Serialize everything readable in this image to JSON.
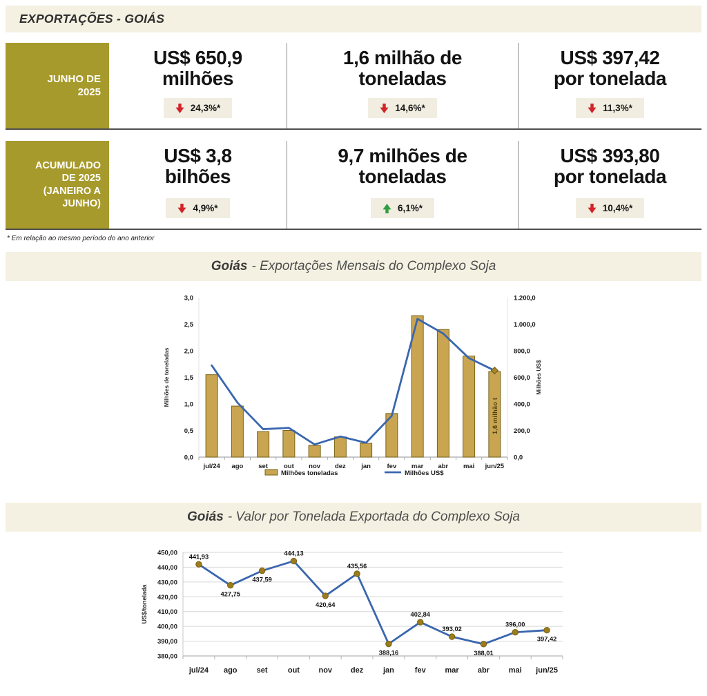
{
  "header": {
    "title": "EXPORTAÇÕES - GOIÁS"
  },
  "kpi": {
    "rows": [
      {
        "label_lines": [
          "JUNHO DE",
          "2025"
        ],
        "cells": [
          {
            "line1": "US$ 650,9",
            "line2": "milhões",
            "delta": "24,3%*",
            "direction": "down"
          },
          {
            "line1": "1,6 milhão de",
            "line2": "toneladas",
            "delta": "14,6%*",
            "direction": "down"
          },
          {
            "line1": "US$ 397,42",
            "line2": "por tonelada",
            "delta": "11,3%*",
            "direction": "down"
          }
        ]
      },
      {
        "label_lines": [
          "ACUMULADO",
          "DE 2025",
          "(JANEIRO A",
          "JUNHO)"
        ],
        "cells": [
          {
            "line1": "US$ 3,8",
            "line2": "bilhões",
            "delta": "4,9%*",
            "direction": "down"
          },
          {
            "line1": "9,7 milhões de",
            "line2": "toneladas",
            "delta": "6,1%*",
            "direction": "up"
          },
          {
            "line1": "US$ 393,80",
            "line2": "por tonelada",
            "delta": "10,4%*",
            "direction": "down"
          }
        ]
      }
    ],
    "up_color": "#2f9f42",
    "down_color": "#d2232a"
  },
  "footnote": "* Em relação ao mesmo período do ano anterior",
  "chart_data": [
    {
      "type": "bar",
      "title_bold": "Goiás",
      "title_rest": "- Exportações Mensais do Complexo Soja",
      "categories": [
        "jul/24",
        "ago",
        "set",
        "out",
        "nov",
        "dez",
        "jan",
        "fev",
        "mar",
        "abr",
        "mai",
        "jun/25"
      ],
      "series": [
        {
          "name": "Milhões toneladas",
          "type": "bar",
          "axis": "left",
          "values": [
            1.55,
            0.96,
            0.48,
            0.5,
            0.22,
            0.38,
            0.26,
            0.82,
            2.66,
            2.4,
            1.9,
            1.61
          ]
        },
        {
          "name": "Milhões US$",
          "type": "line",
          "axis": "right",
          "values": [
            690,
            410,
            210,
            220,
            95,
            155,
            108,
            310,
            1040,
            930,
            745,
            651
          ]
        }
      ],
      "left_axis": {
        "label": "Milhões de toneladas",
        "min": 0,
        "max": 3,
        "step": 0.5,
        "tick_labels": [
          "0,0",
          "0,5",
          "1,0",
          "1,5",
          "2,0",
          "2,5",
          "3,0"
        ]
      },
      "right_axis": {
        "label": "Milhões US$",
        "min": 0,
        "max": 1200,
        "step": 200,
        "tick_labels": [
          "0,0",
          "200,0",
          "400,0",
          "600,0",
          "800,0",
          "1.000,0",
          "1.200,0"
        ]
      },
      "annotation": {
        "text": "1,6 milhão t",
        "category_index": 11
      },
      "legend": [
        "Milhões toneladas",
        "Milhões US$"
      ],
      "grid": false,
      "style": {
        "bar_fill": "#c9a551",
        "bar_stroke": "#756418",
        "line_color": "#3a66ae",
        "marker_fill": "#a8862a",
        "marker_stroke": "#6e5a14",
        "annotation_color": "#4a3c0a"
      }
    },
    {
      "type": "line",
      "title_bold": "Goiás",
      "title_rest": "- Valor por Tonelada Exportada do Complexo Soja",
      "categories": [
        "jul/24",
        "ago",
        "set",
        "out",
        "nov",
        "dez",
        "jan",
        "fev",
        "mar",
        "abr",
        "mai",
        "jun/25"
      ],
      "values": [
        441.93,
        427.75,
        437.59,
        444.13,
        420.64,
        435.56,
        388.16,
        402.84,
        393.02,
        388.01,
        396.0,
        397.42
      ],
      "point_labels": [
        "441,93",
        "427,75",
        "437,59",
        "444,13",
        "420,64",
        "435,56",
        "388,16",
        "402,84",
        "393,02",
        "388,01",
        "396,00",
        "397,42"
      ],
      "label_positions": [
        "above",
        "below",
        "below",
        "above",
        "below",
        "above",
        "below",
        "above",
        "above",
        "below",
        "above",
        "below"
      ],
      "ylabel": "US$/tonelada",
      "y_axis": {
        "min": 380,
        "max": 450,
        "step": 10,
        "tick_labels": [
          "380,00",
          "390,00",
          "400,00",
          "410,00",
          "420,00",
          "430,00",
          "440,00",
          "450,00"
        ]
      },
      "grid": true,
      "style": {
        "line_color": "#3a66ae",
        "marker_fill": "#9c7c1e",
        "marker_stroke": "#77620f",
        "grid_color": "#d6d6d6"
      }
    }
  ]
}
